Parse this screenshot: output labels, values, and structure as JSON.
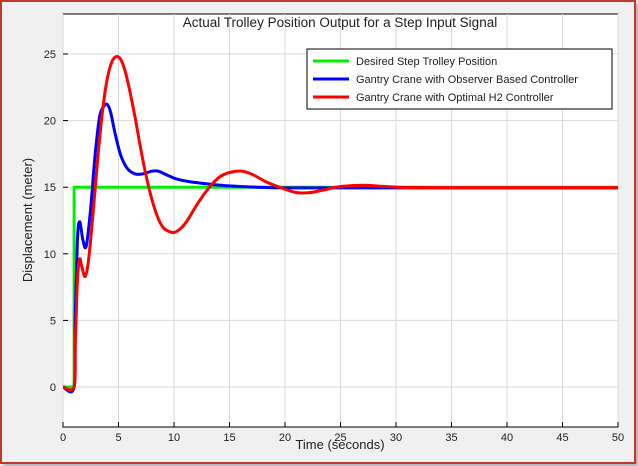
{
  "chart_data": {
    "type": "line",
    "title": "Actual Trolley Position Output for a Step Input Signal",
    "xlabel": "Time (seconds)",
    "ylabel": "Displacement (meter)",
    "xlim": [
      0,
      50
    ],
    "ylim": [
      -3,
      28
    ],
    "xticks": [
      0,
      5,
      10,
      15,
      20,
      25,
      30,
      35,
      40,
      45,
      50
    ],
    "yticks": [
      0,
      5,
      10,
      15,
      20,
      25
    ],
    "grid": true,
    "legend_position": "top-right",
    "series": [
      {
        "name": "Desired Step Trolley Position",
        "color": "#00ee00",
        "x": [
          0,
          1.0,
          1.0,
          50
        ],
        "y": [
          0,
          0,
          15,
          15
        ]
      },
      {
        "name": "Gantry Crane with Observer Based Controller",
        "color": "#0000ff",
        "x": [
          0,
          1.0,
          1.1,
          1.3,
          1.5,
          1.8,
          2.1,
          2.5,
          2.9,
          3.3,
          3.7,
          4.0,
          4.3,
          4.7,
          5.2,
          5.8,
          6.5,
          7.2,
          8.0,
          8.6,
          9.4,
          10.3,
          11.5,
          13.0,
          15.0,
          17.5,
          20.0,
          25.0,
          30.0,
          35.0,
          40.0,
          50.0
        ],
        "y": [
          0,
          0,
          5.0,
          11.0,
          12.4,
          11.0,
          10.6,
          13.5,
          17.5,
          20.3,
          21.1,
          21.2,
          20.6,
          19.0,
          17.4,
          16.4,
          16.0,
          16.0,
          16.2,
          16.2,
          15.9,
          15.6,
          15.4,
          15.25,
          15.1,
          15.0,
          14.95,
          14.95,
          14.95,
          14.95,
          14.95,
          14.95
        ]
      },
      {
        "name": "Gantry Crane with Optimal H2 Controller",
        "color": "#ff0000",
        "x": [
          0,
          1.0,
          1.1,
          1.3,
          1.5,
          1.7,
          2.0,
          2.3,
          2.7,
          3.2,
          3.6,
          4.0,
          4.4,
          4.8,
          5.2,
          5.6,
          6.0,
          6.5,
          7.0,
          7.5,
          8.0,
          8.5,
          9.0,
          9.5,
          10.0,
          10.6,
          11.2,
          12.0,
          13.0,
          14.0,
          15.0,
          16.2,
          17.2,
          18.3,
          19.5,
          21.0,
          22.3,
          23.5,
          25.0,
          27.0,
          29.0,
          31.0,
          35.0,
          40.0,
          50.0
        ],
        "y": [
          0,
          0,
          3.0,
          8.0,
          9.6,
          9.0,
          8.3,
          9.5,
          13.0,
          17.8,
          21.0,
          23.2,
          24.4,
          24.8,
          24.6,
          23.7,
          22.3,
          20.2,
          17.9,
          15.8,
          14.1,
          12.8,
          12.0,
          11.7,
          11.6,
          11.9,
          12.5,
          13.6,
          14.8,
          15.7,
          16.1,
          16.2,
          15.9,
          15.4,
          15.0,
          14.6,
          14.6,
          14.8,
          15.05,
          15.15,
          15.05,
          14.98,
          14.97,
          14.97,
          14.97
        ]
      }
    ]
  }
}
